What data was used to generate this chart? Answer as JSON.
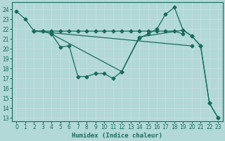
{
  "xlabel": "Humidex (Indice chaleur)",
  "bg_color": "#b2d8d8",
  "grid_color": "#d0e8e8",
  "line_color": "#1a6b5a",
  "xlim": [
    -0.5,
    23.5
  ],
  "ylim": [
    12.7,
    24.7
  ],
  "yticks": [
    13,
    14,
    15,
    16,
    17,
    18,
    19,
    20,
    21,
    22,
    23,
    24
  ],
  "xticks": [
    0,
    1,
    2,
    3,
    4,
    5,
    6,
    7,
    8,
    9,
    10,
    11,
    12,
    13,
    14,
    15,
    16,
    17,
    18,
    19,
    20,
    21,
    22,
    23
  ],
  "line1_x": [
    0,
    1,
    2,
    3,
    4,
    5,
    6,
    7,
    8,
    9,
    10,
    11,
    12,
    14,
    15,
    16,
    17,
    18,
    19,
    20,
    21,
    22,
    23
  ],
  "line1_y": [
    23.8,
    23.0,
    21.8,
    21.8,
    21.5,
    20.2,
    20.3,
    17.2,
    17.2,
    17.5,
    17.5,
    17.0,
    17.7,
    21.1,
    21.5,
    22.0,
    23.5,
    24.2,
    21.9,
    21.3,
    20.3,
    14.5,
    13.0
  ],
  "line2_x": [
    2,
    3,
    4,
    5,
    6,
    7,
    8,
    9,
    10,
    11,
    12,
    13,
    14,
    15,
    16,
    17,
    18,
    19
  ],
  "line2_y": [
    21.8,
    21.8,
    21.8,
    21.8,
    21.8,
    21.8,
    21.8,
    21.8,
    21.8,
    21.8,
    21.8,
    21.8,
    21.8,
    21.8,
    21.8,
    21.8,
    21.8,
    21.5
  ],
  "line3_x": [
    2,
    20
  ],
  "line3_y": [
    21.8,
    20.3
  ],
  "line4_x": [
    4,
    12,
    14,
    19,
    20,
    21,
    22,
    23
  ],
  "line4_y": [
    21.5,
    17.7,
    21.2,
    21.9,
    21.3,
    20.3,
    14.5,
    13.0
  ]
}
